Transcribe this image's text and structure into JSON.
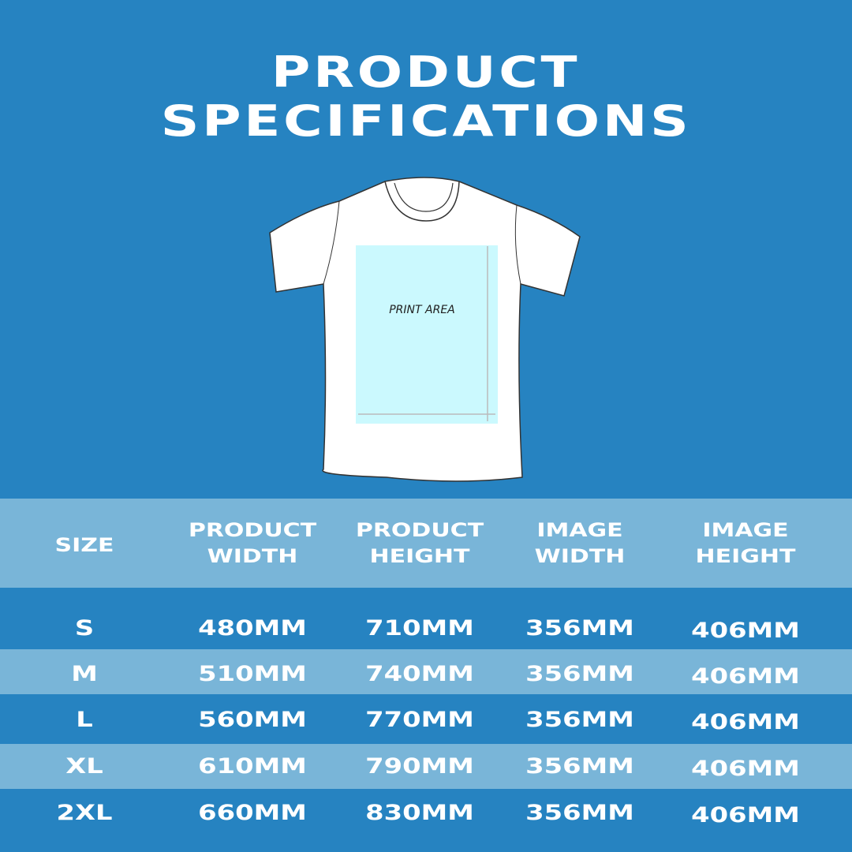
{
  "title": {
    "line1": "PRODUCT",
    "line2": "SPECIFICATIONS"
  },
  "illustration": {
    "label": "PRINT AREA",
    "shirt_color": "#ffffff",
    "print_area_color": "#cbf9fe"
  },
  "colors": {
    "background": "#2683c1",
    "band_light": "#79b5d8",
    "text": "#ffffff"
  },
  "table": {
    "headers": [
      {
        "l1": "SIZE",
        "l2": ""
      },
      {
        "l1": "PRODUCT",
        "l2": "WIDTH"
      },
      {
        "l1": "PRODUCT",
        "l2": "HEIGHT"
      },
      {
        "l1": "IMAGE",
        "l2": "WIDTH"
      },
      {
        "l1": "IMAGE",
        "l2": "HEIGHT"
      }
    ],
    "rows": [
      [
        "S",
        "480MM",
        "710MM",
        "356MM",
        "406MM"
      ],
      [
        "M",
        "510MM",
        "740MM",
        "356MM",
        "406MM"
      ],
      [
        "L",
        "560MM",
        "770MM",
        "356MM",
        "406MM"
      ],
      [
        "XL",
        "610MM",
        "790MM",
        "356MM",
        "406MM"
      ],
      [
        "2XL",
        "660MM",
        "830MM",
        "356MM",
        "406MM"
      ]
    ]
  }
}
